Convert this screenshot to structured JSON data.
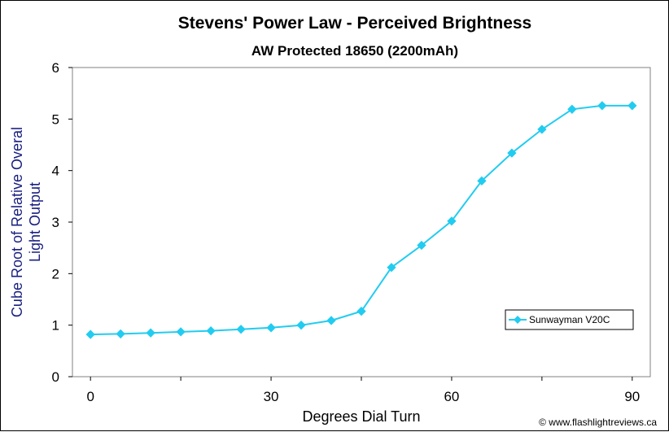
{
  "chart_data": {
    "type": "line",
    "title": "Stevens' Power Law - Perceived Brightness",
    "subtitle": "AW Protected 18650 (2200mAh)",
    "xlabel": "Degrees Dial Turn",
    "ylabel_lines": [
      "Cube Root of Relative Overal",
      "Light Output"
    ],
    "xlim": [
      -3,
      93
    ],
    "ylim": [
      0,
      6
    ],
    "x_ticks": [
      0,
      30,
      60,
      90
    ],
    "y_ticks": [
      0,
      1,
      2,
      3,
      4,
      5,
      6
    ],
    "grid": false,
    "legend_position": "right",
    "series": [
      {
        "name": "Sunwayman V20C",
        "color": "#22ccf0",
        "x": [
          0,
          5,
          10,
          15,
          20,
          25,
          30,
          35,
          40,
          45,
          50,
          55,
          60,
          65,
          70,
          75,
          80,
          85,
          90
        ],
        "y": [
          0.82,
          0.83,
          0.85,
          0.87,
          0.89,
          0.92,
          0.95,
          1.0,
          1.09,
          1.27,
          2.12,
          2.55,
          3.02,
          3.8,
          4.34,
          4.8,
          5.19,
          5.26,
          5.26
        ]
      }
    ]
  },
  "copyright": "© www.flashlightreviews.ca"
}
